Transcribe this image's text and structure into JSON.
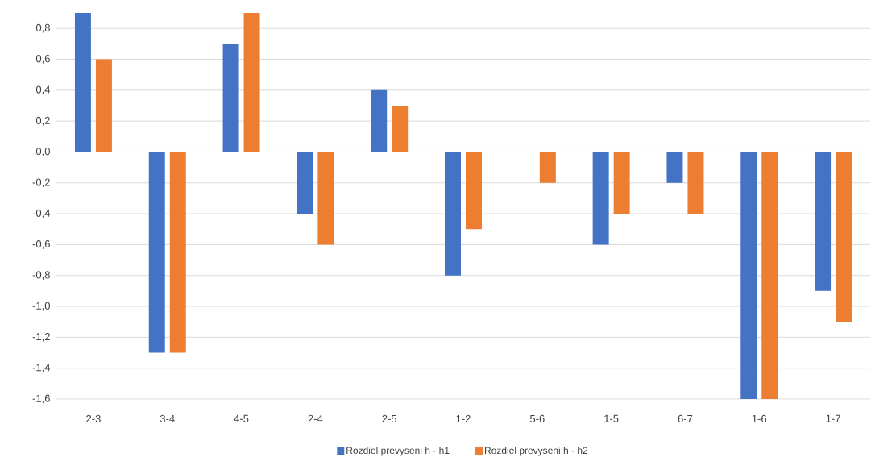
{
  "chart_data": {
    "type": "bar",
    "categories": [
      "2-3",
      "3-4",
      "4-5",
      "2-4",
      "2-5",
      "1-2",
      "5-6",
      "1-5",
      "6-7",
      "1-6",
      "1-7"
    ],
    "series": [
      {
        "name": "Rozdiel prevyseni h - h1",
        "color": "#4472c4",
        "values": [
          0.9,
          -1.3,
          0.7,
          -0.4,
          0.4,
          -0.8,
          0,
          -0.6,
          -0.2,
          -1.6,
          -0.9
        ]
      },
      {
        "name": "Rozdiel prevyseni h - h2",
        "color": "#ed7d31",
        "values": [
          0.6,
          -1.3,
          0.9,
          -0.6,
          0.3,
          -0.5,
          -0.2,
          -0.4,
          -0.4,
          -1.6,
          -1.1
        ]
      }
    ],
    "ylim": [
      -1.6,
      0.9
    ],
    "yticks": [
      {
        "value": -1.6,
        "label": "-1,6"
      },
      {
        "value": -1.4,
        "label": "-1,4"
      },
      {
        "value": -1.2,
        "label": "-1,2"
      },
      {
        "value": -1.0,
        "label": "-1,0"
      },
      {
        "value": -0.8,
        "label": "-0,8"
      },
      {
        "value": -0.6,
        "label": "-0,6"
      },
      {
        "value": -0.4,
        "label": "-0,4"
      },
      {
        "value": -0.2,
        "label": "-0,2"
      },
      {
        "value": 0.0,
        "label": "0,0"
      },
      {
        "value": 0.2,
        "label": "0,2"
      },
      {
        "value": 0.4,
        "label": "0,4"
      },
      {
        "value": 0.6,
        "label": "0,6"
      },
      {
        "value": 0.8,
        "label": "0,8"
      }
    ],
    "grid": "y",
    "legend": "bottom"
  }
}
